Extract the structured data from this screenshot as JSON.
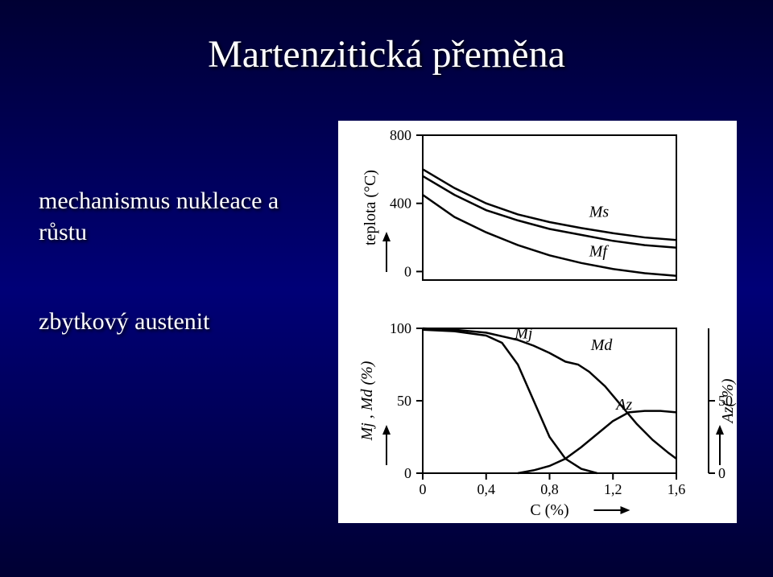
{
  "title": "Martenzitická přeměna",
  "sideText1_line1": "mechanismus nukleace a",
  "sideText1_line2": "růstu",
  "sideText2": "zbytkový austenit",
  "chart": {
    "background_color": "#ffffff",
    "line_color": "#000000",
    "font_family": "Times New Roman, serif",
    "label_fontsize": 20,
    "tick_fontsize": 18,
    "top": {
      "x_range": [
        0,
        1.6
      ],
      "y_range": [
        -50,
        800
      ],
      "y_ticks": [
        0,
        400,
        800
      ],
      "yaxis_label": "teplota (°C)",
      "arrow_up": true,
      "curves": {
        "Ms": {
          "label": "Ms",
          "label_x": 1.05,
          "label_y": 320,
          "points": [
            [
              0,
              600
            ],
            [
              0.2,
              490
            ],
            [
              0.4,
              400
            ],
            [
              0.6,
              335
            ],
            [
              0.8,
              290
            ],
            [
              1.0,
              255
            ],
            [
              1.2,
              225
            ],
            [
              1.4,
              200
            ],
            [
              1.6,
              185
            ]
          ]
        },
        "Ms2": {
          "points": [
            [
              0,
              560
            ],
            [
              0.2,
              450
            ],
            [
              0.4,
              360
            ],
            [
              0.6,
              300
            ],
            [
              0.8,
              250
            ],
            [
              1.0,
              215
            ],
            [
              1.2,
              180
            ],
            [
              1.4,
              155
            ],
            [
              1.6,
              140
            ]
          ]
        },
        "Mf": {
          "label": "Mf",
          "label_x": 1.05,
          "label_y": 90,
          "points": [
            [
              0,
              450
            ],
            [
              0.2,
              320
            ],
            [
              0.4,
              230
            ],
            [
              0.6,
              155
            ],
            [
              0.8,
              95
            ],
            [
              1.0,
              50
            ],
            [
              1.2,
              15
            ],
            [
              1.4,
              -10
            ],
            [
              1.6,
              -25
            ]
          ]
        }
      }
    },
    "bottom": {
      "x_range": [
        0,
        1.6
      ],
      "x_ticks": [
        0,
        0.4,
        0.8,
        1.2,
        1.6
      ],
      "x_label": "C (%)",
      "x_arrow": true,
      "left_y_range": [
        0,
        100
      ],
      "left_y_ticks": [
        0,
        50,
        100
      ],
      "left_label": "Mj , Md (%)",
      "left_arrow_up": true,
      "right_y_range": [
        0,
        100
      ],
      "right_y_ticks": [
        0,
        50
      ],
      "right_label": "Az( %)",
      "right_arrow_up": true,
      "curves": {
        "Mj": {
          "label": "Mj",
          "label_x": 0.58,
          "label_y": 93,
          "points": [
            [
              0,
              99
            ],
            [
              0.2,
              98
            ],
            [
              0.4,
              95
            ],
            [
              0.5,
              90
            ],
            [
              0.6,
              75
            ],
            [
              0.7,
              50
            ],
            [
              0.8,
              25
            ],
            [
              0.9,
              10
            ],
            [
              1.0,
              3
            ],
            [
              1.1,
              0
            ]
          ]
        },
        "Md": {
          "label": "Md",
          "label_x": 1.06,
          "label_y": 85,
          "points": [
            [
              0,
              100
            ],
            [
              0.2,
              99
            ],
            [
              0.4,
              97
            ],
            [
              0.6,
              92
            ],
            [
              0.7,
              88
            ],
            [
              0.8,
              83
            ],
            [
              0.85,
              80
            ],
            [
              0.9,
              77
            ],
            [
              0.98,
              75
            ],
            [
              1.05,
              70
            ],
            [
              1.15,
              60
            ],
            [
              1.25,
              47
            ],
            [
              1.35,
              34
            ],
            [
              1.45,
              23
            ],
            [
              1.55,
              14
            ],
            [
              1.6,
              10
            ]
          ]
        },
        "Az": {
          "label": "Az",
          "label_x": 1.22,
          "label_y": 44,
          "points": [
            [
              0.6,
              0
            ],
            [
              0.7,
              2
            ],
            [
              0.8,
              5
            ],
            [
              0.9,
              10
            ],
            [
              1.0,
              18
            ],
            [
              1.1,
              27
            ],
            [
              1.2,
              36
            ],
            [
              1.3,
              42
            ],
            [
              1.4,
              43
            ],
            [
              1.5,
              43
            ],
            [
              1.6,
              42
            ]
          ]
        }
      }
    }
  }
}
